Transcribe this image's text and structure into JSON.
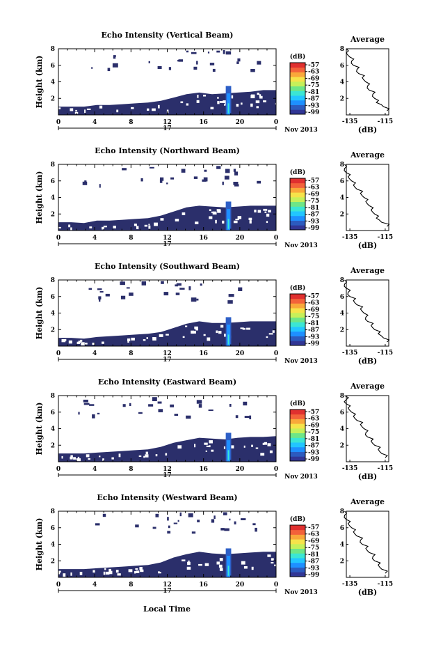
{
  "colorbar": {
    "unit": "(dB)",
    "ticks": [
      "-57",
      "-63",
      "-69",
      "-75",
      "-81",
      "-87",
      "-93",
      "-99"
    ],
    "colors": [
      "#313695",
      "#2c5bbf",
      "#1e90ff",
      "#22c6ff",
      "#3be6d4",
      "#6ee687",
      "#c6f05a",
      "#f6e34a",
      "#f9a83a",
      "#f3623a",
      "#e0302f"
    ]
  },
  "common": {
    "ylabel": "Height (km)",
    "xticks": [
      "0",
      "4",
      "8",
      "12",
      "16",
      "20",
      "0"
    ],
    "day_label": "17",
    "month_label": "Nov 2013",
    "xlabel": "Local Time",
    "avg_title": "Average",
    "avg_xlabel": "(dB)"
  },
  "chart_data": [
    {
      "type": "heatmap",
      "title": "Echo Intensity (Vertical Beam)",
      "ylabel": "Height (km)",
      "x_range_hours": [
        0,
        24
      ],
      "y_range_km": [
        0,
        8
      ],
      "yticks": [
        "2",
        "4",
        "6",
        "8"
      ],
      "top_km": [
        1.0,
        1.0,
        1.0,
        1.2,
        1.2,
        1.3,
        1.4,
        1.5,
        1.7,
        2.1,
        2.5,
        2.7,
        2.5,
        2.6,
        2.7,
        2.8,
        3.0,
        3.0
      ],
      "avg_profile": {
        "title": "Average",
        "xlabel": "(dB)",
        "xticks": [
          "-135",
          "-115"
        ],
        "yticks": [
          "2",
          "4",
          "6",
          "8"
        ],
        "heights_km": [
          0.5,
          1,
          1.5,
          2,
          2.5,
          3,
          3.5,
          4,
          4.5,
          5,
          5.5,
          6,
          6.5,
          7,
          7.5,
          8
        ],
        "values_db": [
          -114,
          -116,
          -120,
          -121,
          -122,
          -124,
          -125,
          -126,
          -128,
          -130,
          -131,
          -133,
          -134,
          -135,
          -137,
          -137
        ]
      }
    },
    {
      "type": "heatmap",
      "title": "Echo Intensity (Northward Beam)",
      "ylabel": "Height (km)",
      "x_range_hours": [
        0,
        24
      ],
      "y_range_km": [
        0,
        8
      ],
      "yticks": [
        "2",
        "4",
        "6",
        "8"
      ],
      "top_km": [
        1.0,
        1.0,
        0.9,
        1.2,
        1.2,
        1.3,
        1.4,
        1.5,
        1.8,
        2.3,
        2.8,
        3.0,
        2.9,
        2.8,
        2.9,
        3.0,
        3.0,
        3.0
      ],
      "avg_profile": {
        "title": "Average",
        "xlabel": "(dB)",
        "xticks": [
          "-135",
          "-115"
        ],
        "yticks": [
          "2",
          "4",
          "6",
          "8"
        ],
        "heights_km": [
          0.5,
          1,
          1.5,
          2,
          2.5,
          3,
          3.5,
          4,
          4.5,
          5,
          5.5,
          6,
          6.5,
          7,
          7.5,
          8
        ],
        "values_db": [
          -114,
          -117,
          -120,
          -121,
          -123,
          -124,
          -126,
          -127,
          -129,
          -131,
          -133,
          -134,
          -136,
          -137,
          -138,
          -138
        ]
      }
    },
    {
      "type": "heatmap",
      "title": "Echo Intensity (Southward Beam)",
      "ylabel": "Height (km)",
      "x_range_hours": [
        0,
        24
      ],
      "y_range_km": [
        0,
        8
      ],
      "yticks": [
        "2",
        "4",
        "6",
        "8"
      ],
      "top_km": [
        1.0,
        1.0,
        0.9,
        1.1,
        1.2,
        1.3,
        1.4,
        1.5,
        1.7,
        2.2,
        2.7,
        3.0,
        2.8,
        2.8,
        2.9,
        3.0,
        3.0,
        3.0
      ],
      "avg_profile": {
        "title": "Average",
        "xlabel": "(dB)",
        "xticks": [
          "-135",
          "-115"
        ],
        "yticks": [
          "2",
          "4",
          "6",
          "8"
        ],
        "heights_km": [
          0.5,
          1,
          1.5,
          2,
          2.5,
          3,
          3.5,
          4,
          4.5,
          5,
          5.5,
          6,
          6.5,
          7,
          7.5,
          8
        ],
        "values_db": [
          -114,
          -116,
          -119,
          -121,
          -123,
          -125,
          -126,
          -127,
          -129,
          -131,
          -133,
          -135,
          -136,
          -137,
          -138,
          -138
        ]
      }
    },
    {
      "type": "heatmap",
      "title": "Echo Intensity (Eastward Beam)",
      "ylabel": "Height (km)",
      "x_range_hours": [
        0,
        24
      ],
      "y_range_km": [
        0,
        8
      ],
      "yticks": [
        "2",
        "4",
        "6",
        "8"
      ],
      "top_km": [
        1.0,
        1.0,
        1.0,
        1.1,
        1.2,
        1.3,
        1.4,
        1.5,
        1.8,
        2.3,
        2.6,
        2.9,
        2.8,
        2.7,
        2.9,
        3.0,
        3.0,
        3.1
      ],
      "avg_profile": {
        "title": "Average",
        "xlabel": "(dB)",
        "xticks": [
          "-135",
          "-115"
        ],
        "yticks": [
          "2",
          "4",
          "6",
          "8"
        ],
        "heights_km": [
          0.5,
          1,
          1.5,
          2,
          2.5,
          3,
          3.5,
          4,
          4.5,
          5,
          5.5,
          6,
          6.5,
          7,
          7.5,
          8
        ],
        "values_db": [
          -115,
          -117,
          -119,
          -121,
          -123,
          -125,
          -126,
          -127,
          -129,
          -131,
          -133,
          -134,
          -136,
          -137,
          -137,
          -138
        ]
      }
    },
    {
      "type": "heatmap",
      "title": "Echo Intensity (Westward Beam)",
      "ylabel": "Height (km)",
      "x_range_hours": [
        0,
        24
      ],
      "y_range_km": [
        0,
        8
      ],
      "yticks": [
        "2",
        "4",
        "6",
        "8"
      ],
      "top_km": [
        1.0,
        1.0,
        1.0,
        1.1,
        1.2,
        1.3,
        1.4,
        1.5,
        1.8,
        2.4,
        2.8,
        3.1,
        2.9,
        2.8,
        2.9,
        3.0,
        3.1,
        3.1
      ],
      "avg_profile": {
        "title": "Average",
        "xlabel": "(dB)",
        "xticks": [
          "-135",
          "-115"
        ],
        "yticks": [
          "2",
          "4",
          "6",
          "8"
        ],
        "heights_km": [
          0.5,
          1,
          1.5,
          2,
          2.5,
          3,
          3.5,
          4,
          4.5,
          5,
          5.5,
          6,
          6.5,
          7,
          7.5,
          8
        ],
        "values_db": [
          -115,
          -117,
          -119,
          -121,
          -122,
          -124,
          -126,
          -128,
          -129,
          -131,
          -133,
          -134,
          -136,
          -137,
          -138,
          -138
        ]
      }
    }
  ]
}
